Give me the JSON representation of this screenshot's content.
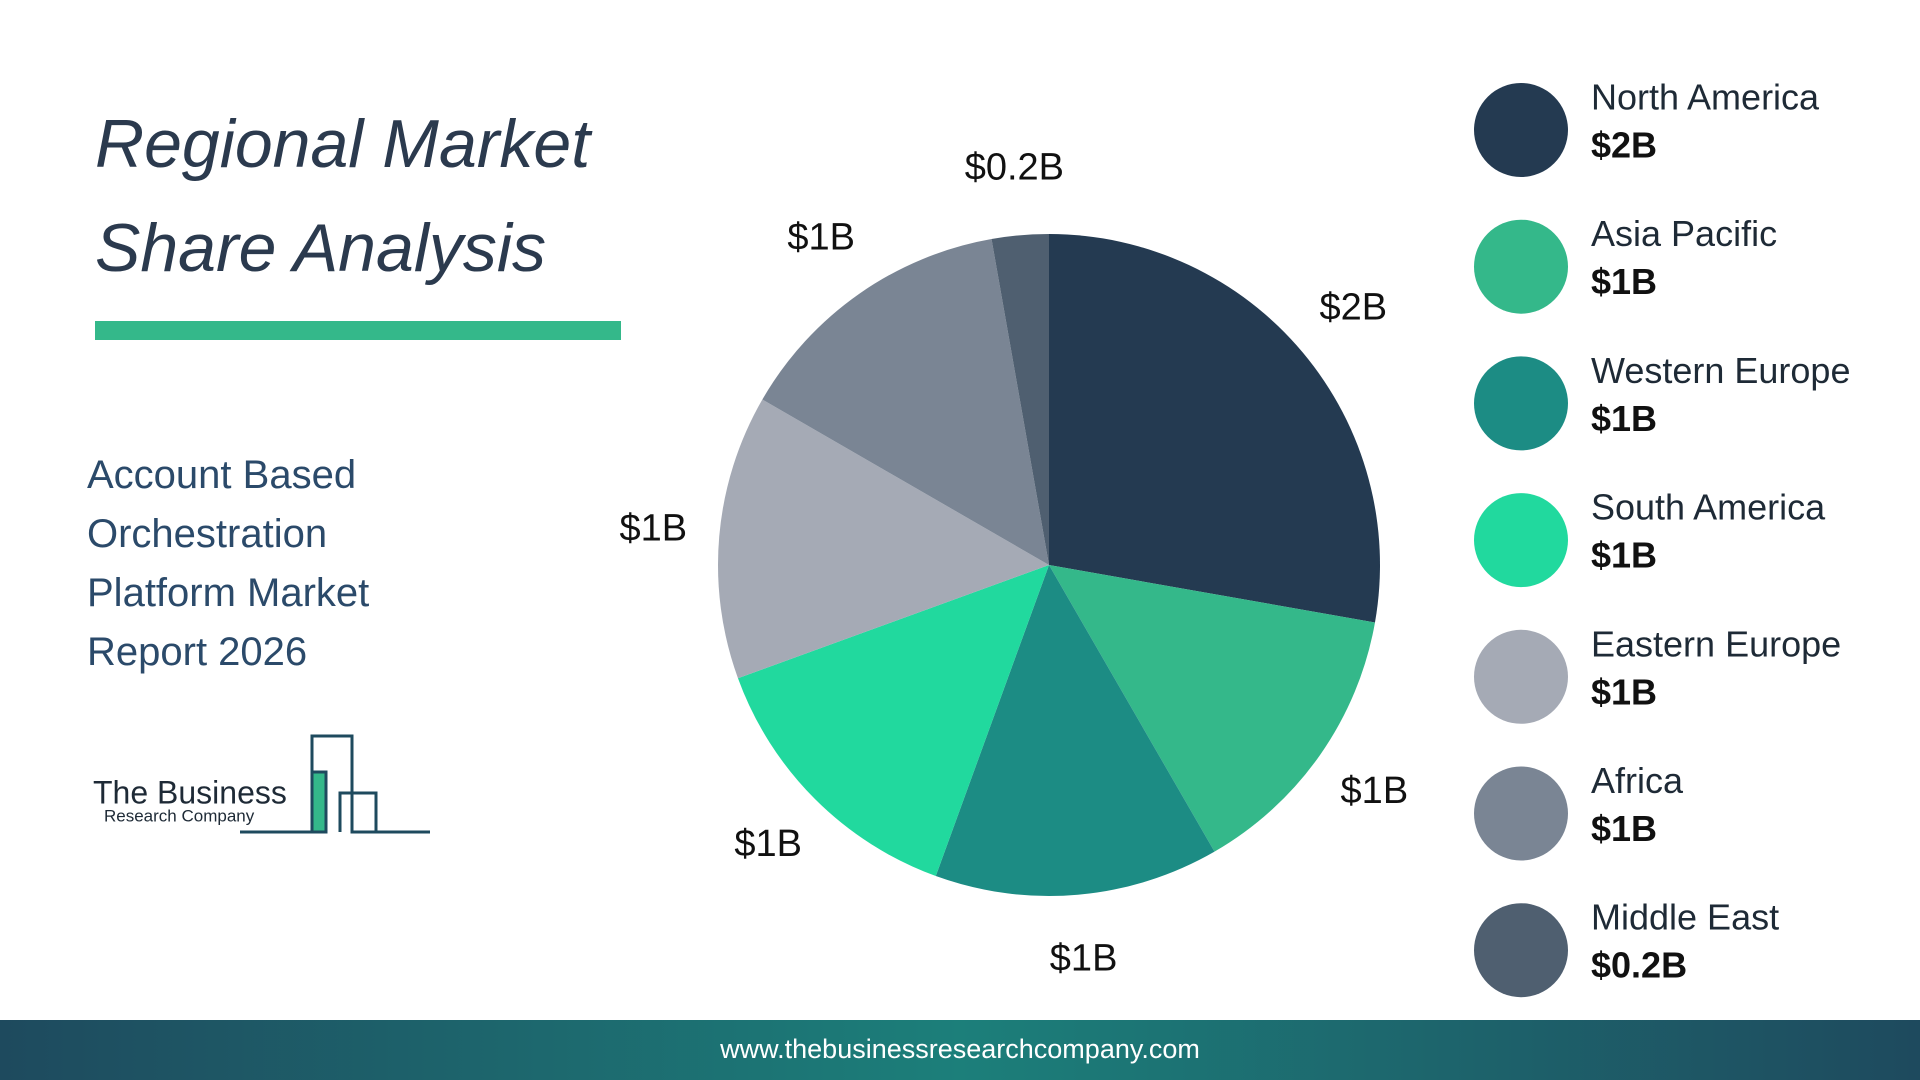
{
  "title": "Regional Market Share Analysis",
  "subtitle": "Account Based Orchestration Platform Market Report 2026",
  "logo": {
    "line1": "The Business",
    "line2": "Research Company"
  },
  "footer": {
    "url": "www.thebusinessresearchcompany.com"
  },
  "chart_data": {
    "type": "pie",
    "categories": [
      "North America",
      "Asia Pacific",
      "Western Europe",
      "South America",
      "Eastern Europe",
      "Africa",
      "Middle East"
    ],
    "values": [
      2,
      1,
      1,
      1,
      1,
      1,
      0.2
    ],
    "value_labels": [
      "$2B",
      "$1B",
      "$1B",
      "$1B",
      "$1B",
      "$1B",
      "$0.2B"
    ],
    "colors": [
      "#243a51",
      "#34b88a",
      "#1c8c84",
      "#21d99e",
      "#a5aab5",
      "#7a8594",
      "#4f5f70"
    ]
  }
}
